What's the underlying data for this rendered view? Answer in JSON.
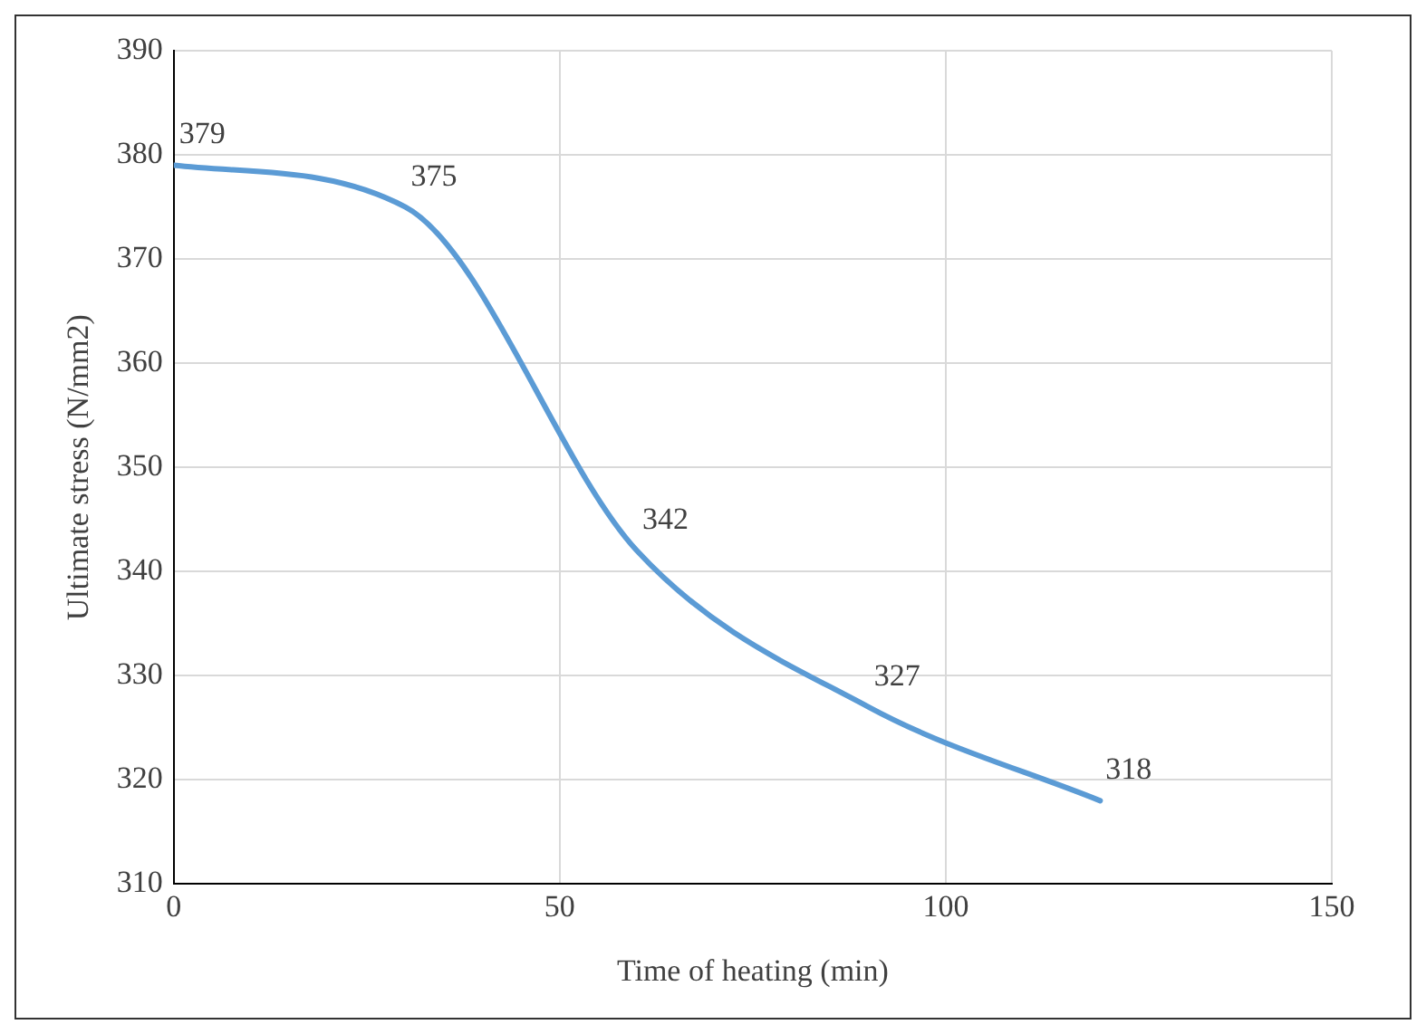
{
  "chart_data": {
    "type": "line",
    "xlabel": "Time of heating (min)",
    "ylabel": "Ultimate stress (N/mm2)",
    "x": [
      0,
      30,
      60,
      90,
      120
    ],
    "series": [
      {
        "color": "#5b9bd5",
        "values": [
          379,
          375,
          342,
          327,
          318
        ]
      }
    ],
    "xlim": [
      0,
      150
    ],
    "xticks": [
      0,
      50,
      100,
      150
    ],
    "ylim": [
      310,
      390
    ],
    "yticks": [
      310,
      320,
      330,
      340,
      350,
      360,
      370,
      380,
      390
    ],
    "grid": true,
    "legend": false,
    "marker": "none",
    "line_style": "solid",
    "data_labels": true
  }
}
